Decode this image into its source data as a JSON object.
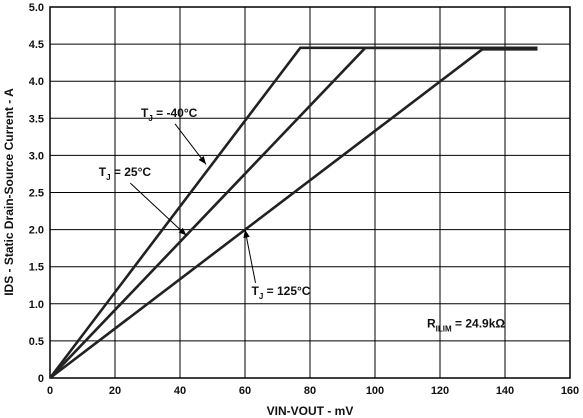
{
  "chart_data": {
    "type": "line",
    "xlabel": "VIN-VOUT - mV",
    "ylabel": "IDS - Static Drain-Source Current - A",
    "xlim": [
      0,
      160
    ],
    "ylim": [
      0,
      5.0
    ],
    "x_ticks": [
      "0",
      "20",
      "40",
      "60",
      "80",
      "100",
      "120",
      "140",
      "160"
    ],
    "y_ticks": [
      "0",
      "0.5",
      "1.0",
      "1.5",
      "2.0",
      "2.5",
      "3.0",
      "3.5",
      "4.0",
      "4.5",
      "5.0"
    ],
    "grid": true,
    "series": [
      {
        "name": "TJ = -40°C",
        "points": [
          [
            0,
            0
          ],
          [
            77,
            4.45
          ],
          [
            150,
            4.45
          ]
        ]
      },
      {
        "name": "TJ = 25°C",
        "points": [
          [
            0,
            0
          ],
          [
            97,
            4.45
          ],
          [
            150,
            4.45
          ]
        ]
      },
      {
        "name": "TJ = 125°C",
        "points": [
          [
            0,
            0
          ],
          [
            133,
            4.43
          ],
          [
            150,
            4.43
          ]
        ]
      }
    ],
    "annotations": [
      {
        "main": "T",
        "sub": "J",
        "rest": " = -40°C",
        "at": [
          28,
          3.52
        ],
        "arrow_to": [
          48,
          2.88
        ]
      },
      {
        "main": "T",
        "sub": "J",
        "rest": " = 25°C",
        "at": [
          15,
          2.72
        ],
        "arrow_to": [
          42,
          1.92
        ]
      },
      {
        "main": "T",
        "sub": "J",
        "rest": " = 125°C",
        "at": [
          62,
          1.12
        ],
        "arrow_to": [
          60,
          2.0
        ]
      },
      {
        "main": "R",
        "sub": "ILIM",
        "rest": " = 24.9kΩ",
        "at": [
          116,
          0.68
        ]
      }
    ]
  }
}
